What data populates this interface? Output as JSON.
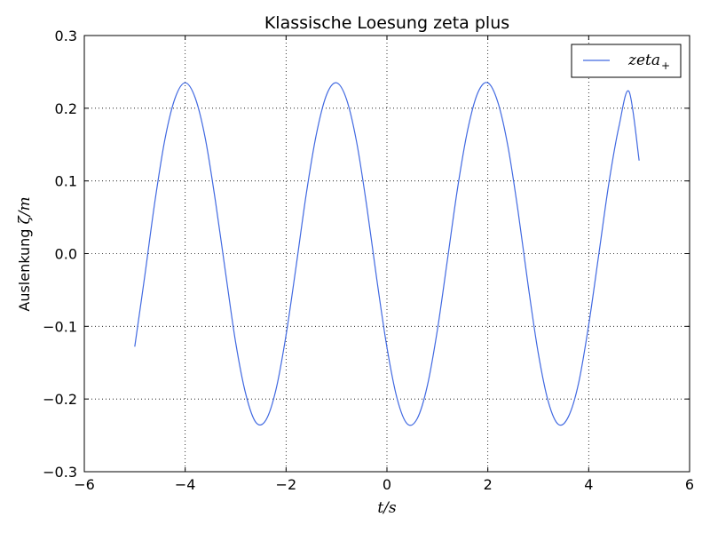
{
  "chart_data": {
    "type": "line",
    "title": "Klassische Loesung zeta plus",
    "xlabel": "t/s",
    "ylabel_text": "Auslenkung ",
    "ylabel_math": "ζ/m",
    "xlim": [
      -6,
      6
    ],
    "ylim": [
      -0.3,
      0.3
    ],
    "x_ticks": [
      -6,
      -4,
      -2,
      0,
      2,
      4,
      6
    ],
    "y_ticks": [
      -0.3,
      -0.2,
      -0.1,
      0.0,
      0.1,
      0.2,
      0.3
    ],
    "x_tick_labels": [
      "−6",
      "−4",
      "−2",
      "0",
      "2",
      "4",
      "6"
    ],
    "y_tick_labels": [
      "−0.3",
      "−0.2",
      "−0.1",
      "0.0",
      "0.1",
      "0.2",
      "0.3"
    ],
    "grid": true,
    "legend": "top-right",
    "series": [
      {
        "name": "zeta",
        "name_subscript": "+",
        "color": "#4169e1",
        "x": [
          -5.0,
          -4.8,
          -4.6,
          -4.4,
          -4.2,
          -4.0,
          -3.8,
          -3.6,
          -3.4,
          -3.2,
          -3.0,
          -2.8,
          -2.6,
          -2.4,
          -2.2,
          -2.0,
          -1.8,
          -1.6,
          -1.4,
          -1.2,
          -1.0,
          -0.8,
          -0.6,
          -0.4,
          -0.2,
          0.0,
          0.2,
          0.4,
          0.6,
          0.8,
          1.0,
          1.2,
          1.4,
          1.6,
          1.8,
          2.0,
          2.2,
          2.4,
          2.6,
          2.8,
          3.0,
          3.2,
          3.4,
          3.6,
          3.8,
          4.0,
          4.2,
          4.4,
          4.6,
          4.8,
          5.0
        ],
        "y": [
          -0.128,
          -0.03,
          0.072,
          0.158,
          0.214,
          0.235,
          0.214,
          0.158,
          0.072,
          -0.026,
          -0.122,
          -0.193,
          -0.232,
          -0.229,
          -0.187,
          -0.112,
          -0.017,
          0.082,
          0.164,
          0.218,
          0.235,
          0.212,
          0.153,
          0.065,
          -0.036,
          -0.129,
          -0.199,
          -0.234,
          -0.227,
          -0.182,
          -0.105,
          -0.008,
          0.09,
          0.17,
          0.221,
          0.235,
          0.208,
          0.147,
          0.058,
          -0.044,
          -0.137,
          -0.204,
          -0.235,
          -0.224,
          -0.178,
          -0.098,
          -0.001,
          0.097,
          0.175,
          0.223,
          0.128
        ]
      }
    ]
  }
}
